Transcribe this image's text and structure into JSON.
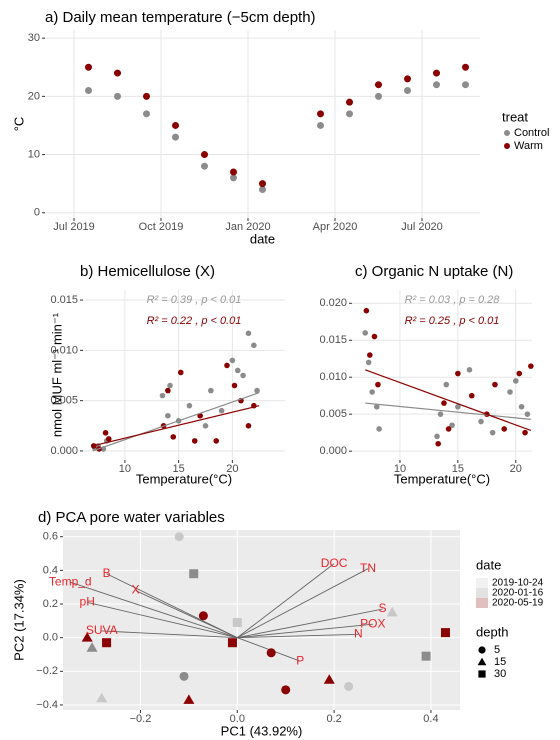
{
  "chart_data": [
    {
      "type": "scatter",
      "title": "a) Daily mean temperature (−5cm depth)",
      "x_label": "date",
      "y_label": "°C",
      "theme": "minimal",
      "x": [
        "2019-07",
        "2019-08",
        "2019-09",
        "2019-10",
        "2019-11",
        "2019-12",
        "2020-01",
        "2020-02",
        "2020-03",
        "2020-04",
        "2020-05",
        "2020-06",
        "2020-07",
        "2020-08"
      ],
      "series": [
        {
          "name": "Control",
          "color": "#8c8c8c",
          "values": [
            21,
            20,
            17,
            13,
            8,
            6,
            4,
            null,
            15,
            17,
            20,
            21,
            22,
            22
          ]
        },
        {
          "name": "Warm",
          "color": "#8b0000",
          "values": [
            25,
            24,
            20,
            15,
            10,
            7,
            5,
            null,
            17,
            19,
            22,
            23,
            24,
            25
          ]
        }
      ],
      "legend_title": "treat",
      "xlim": [
        "2019-06",
        "2020-09"
      ],
      "xticks": [
        {
          "value": "2019-07",
          "label": "Jul 2019"
        },
        {
          "value": "2019-10",
          "label": "Oct 2019"
        },
        {
          "value": "2020-01",
          "label": "Jan 2020"
        },
        {
          "value": "2020-04",
          "label": "Apr 2020"
        },
        {
          "value": "2020-07",
          "label": "Jul 2020"
        }
      ],
      "ylim": [
        -0.9,
        31.4
      ],
      "yticks": [
        0,
        10,
        20,
        30
      ],
      "grid": true
    },
    {
      "type": "scatter",
      "title": "b)  Hemicellulose (X)",
      "x_label": "Temperature(°C)",
      "y_label": "nmol MUF ml⁻¹ min⁻¹",
      "theme": "minimal",
      "series": [
        {
          "color": "#8c8c8c",
          "x": [
            7.2,
            7.5,
            8,
            8.3,
            13.5,
            14,
            14.2,
            15,
            16,
            17.5,
            18,
            19,
            20,
            20.5,
            21,
            21.5,
            22,
            22.3
          ],
          "values": [
            0.0003,
            0.0005,
            0.0002,
            0.001,
            0.0055,
            0.0035,
            0.0065,
            0.003,
            0.0045,
            0.0025,
            0.006,
            0.004,
            0.009,
            0.008,
            0.0075,
            0.0117,
            0.0105,
            0.006
          ],
          "trend": {
            "x": [
              7,
              22.5
            ],
            "values": [
              0,
              0.0058
            ]
          }
        },
        {
          "color": "#8b0000",
          "x": [
            7.1,
            7.6,
            8.2,
            8.5,
            13.6,
            14,
            14.5,
            15.2,
            16.5,
            17,
            18.5,
            19.5,
            20.2,
            20.8,
            21.5,
            22
          ],
          "values": [
            0.0005,
            0.0002,
            0.0018,
            0.0012,
            0.0025,
            0.006,
            0.0014,
            0.0078,
            0.001,
            0.0035,
            0.001,
            0.0085,
            0.0065,
            0.005,
            0.0025,
            0.0045
          ],
          "trend": {
            "x": [
              7,
              22.5
            ],
            "values": [
              0.0005,
              0.0045
            ]
          }
        }
      ],
      "annotations": [
        {
          "text": "R² = 0.39 , p < 0.01",
          "color": "#999999"
        },
        {
          "text": "R² = 0.22 , p < 0.01",
          "color": "#8b0000"
        }
      ],
      "xlim": [
        6.1,
        24.9
      ],
      "xticks": [
        10,
        15,
        20
      ],
      "ylim": [
        -0.0009,
        0.016
      ],
      "yticks": [
        {
          "value": 0,
          "label": "0.000"
        },
        {
          "value": 0.005,
          "label": "0.005"
        },
        {
          "value": 0.01,
          "label": "0.010"
        },
        {
          "value": 0.015,
          "label": "0.015"
        }
      ],
      "grid": true
    },
    {
      "type": "scatter",
      "title": "c)  Organic N uptake (N)",
      "x_label": "Temperature(°C)",
      "theme": "minimal",
      "series": [
        {
          "color": "#8c8c8c",
          "x": [
            7,
            7.3,
            7.6,
            8,
            8.2,
            13.2,
            13.5,
            14,
            14.5,
            15,
            16,
            17,
            18,
            19.5,
            20,
            20.5,
            21
          ],
          "values": [
            0.016,
            0.012,
            0.008,
            0.006,
            0.003,
            0.002,
            0.005,
            0.009,
            0.0035,
            0.006,
            0.011,
            0.004,
            0.0025,
            0.008,
            0.0095,
            0.006,
            0.005
          ],
          "trend": {
            "x": [
              7,
              21.3
            ],
            "values": [
              0.0065,
              0.0043
            ]
          }
        },
        {
          "color": "#8b0000",
          "x": [
            7.1,
            7.4,
            7.8,
            8.1,
            13.3,
            13.8,
            14.2,
            15,
            16.2,
            17.5,
            18.2,
            19,
            20.3,
            20.8,
            21.3
          ],
          "values": [
            0.019,
            0.013,
            0.0155,
            0.009,
            0.001,
            0.0065,
            0.003,
            0.0105,
            0.0075,
            0.005,
            0.009,
            0.003,
            0.0105,
            0.0025,
            0.0115
          ],
          "trend": {
            "x": [
              7,
              21.3
            ],
            "values": [
              0.011,
              0.0028
            ]
          }
        }
      ],
      "annotations": [
        {
          "text": "R² = 0.03 , p = 0.28",
          "color": "#999999"
        },
        {
          "text": "R² = 0.25 , p < 0.01",
          "color": "#8b0000"
        }
      ],
      "xlim": [
        5.86,
        21.4
      ],
      "xticks": [
        10,
        15,
        20
      ],
      "ylim": [
        -0.0012,
        0.0218
      ],
      "yticks": [
        {
          "value": 0,
          "label": "0.000"
        },
        {
          "value": 0.005,
          "label": "0.005"
        },
        {
          "value": 0.01,
          "label": "0.010"
        },
        {
          "value": 0.015,
          "label": "0.015"
        },
        {
          "value": 0.02,
          "label": "0.020"
        }
      ],
      "grid": true
    },
    {
      "type": "biplot",
      "title": "d)  PCA pore water variables",
      "x_label": "PC1 (43.92%)",
      "y_label": "PC2 (17.34%)",
      "theme": "gray",
      "legend_title": "date",
      "series": [
        {
          "name": "2019-10-24",
          "color": "#c8c8c8",
          "x": [
            -0.12,
            0.23,
            -0.28,
            0.32,
            0.0
          ],
          "values": [
            0.6,
            -0.29,
            -0.36,
            0.15,
            0.09
          ],
          "depth": [
            5,
            5,
            15,
            15,
            30
          ]
        },
        {
          "name": "2020-01-16",
          "color": "#8c8c8c",
          "x": [
            -0.11,
            -0.3,
            -0.09,
            0.39
          ],
          "values": [
            -0.23,
            -0.06,
            0.38,
            -0.11
          ],
          "depth": [
            5,
            15,
            30,
            30
          ]
        },
        {
          "name": "2020-05-19",
          "color": "#8b0000",
          "x": [
            -0.07,
            0.07,
            0.1,
            0.19,
            -0.1,
            -0.31,
            -0.27,
            -0.01,
            0.43
          ],
          "values": [
            0.13,
            -0.09,
            -0.31,
            -0.25,
            -0.37,
            0.0,
            -0.03,
            -0.03,
            0.03
          ],
          "depth": [
            5,
            5,
            5,
            15,
            15,
            15,
            30,
            30,
            30
          ]
        }
      ],
      "depth_legend": {
        "title": "depth",
        "levels": [
          5,
          15,
          30
        ]
      },
      "loading_color": "#e8262b",
      "loadings": [
        {
          "label": "DOC",
          "x": 0.2,
          "y": 0.44
        },
        {
          "label": "TN",
          "x": 0.27,
          "y": 0.41
        },
        {
          "label": "B",
          "x": -0.27,
          "y": 0.38
        },
        {
          "label": "Temp_d",
          "x": -0.345,
          "y": 0.33
        },
        {
          "label": "X",
          "x": -0.21,
          "y": 0.28
        },
        {
          "label": "pH",
          "x": -0.31,
          "y": 0.21
        },
        {
          "label": "SUVA",
          "x": -0.28,
          "y": 0.04
        },
        {
          "label": "S",
          "x": 0.3,
          "y": 0.17
        },
        {
          "label": "POX",
          "x": 0.28,
          "y": 0.08
        },
        {
          "label": "N",
          "x": 0.25,
          "y": 0.02
        },
        {
          "label": "P",
          "x": 0.13,
          "y": -0.14
        }
      ],
      "xlim": [
        -0.36,
        0.46
      ],
      "xticks": [
        {
          "value": -0.2,
          "label": "−0.2"
        },
        {
          "value": 0,
          "label": "0.0"
        },
        0.2,
        0.4
      ],
      "ylim": [
        -0.43,
        0.64
      ],
      "yticks": [
        {
          "value": -0.4,
          "label": "−0.4"
        },
        {
          "value": -0.2,
          "label": "−0.2"
        },
        {
          "value": 0,
          "label": "0.0"
        },
        0.2,
        0.4,
        0.6
      ],
      "grid": true
    }
  ]
}
